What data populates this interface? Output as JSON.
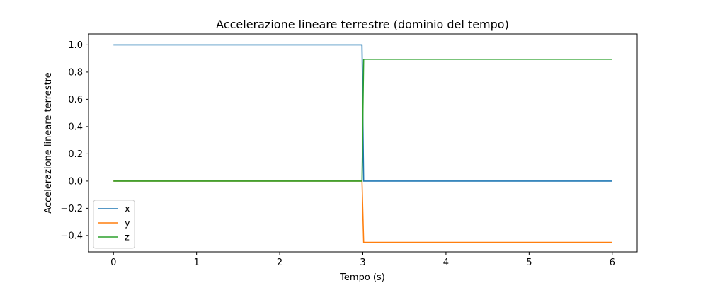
{
  "chart_data": {
    "type": "line",
    "title": "Accelerazione lineare terrestre (dominio del tempo)",
    "xlabel": "Tempo (s)",
    "ylabel": "Accelerazione lineare terrestre",
    "xlim": [
      -0.3,
      6.3
    ],
    "ylim": [
      -0.52,
      1.08
    ],
    "xticks": [
      0,
      1,
      2,
      3,
      4,
      5,
      6
    ],
    "xtick_labels": [
      "0",
      "1",
      "2",
      "3",
      "4",
      "5",
      "6"
    ],
    "yticks": [
      -0.4,
      -0.2,
      0.0,
      0.2,
      0.4,
      0.6,
      0.8,
      1.0
    ],
    "ytick_labels": [
      "−0.4",
      "−0.2",
      "0.0",
      "0.2",
      "0.4",
      "0.6",
      "0.8",
      "1.0"
    ],
    "grid": false,
    "legend_position": "lower-left",
    "series": [
      {
        "name": "x",
        "color": "#1f77b4",
        "x": [
          0,
          2.99,
          3.01,
          6
        ],
        "y": [
          1.0,
          1.0,
          0.0,
          0.0
        ]
      },
      {
        "name": "y",
        "color": "#ff7f0e",
        "x": [
          0,
          2.99,
          3.01,
          6
        ],
        "y": [
          0.0,
          0.0,
          -0.45,
          -0.45
        ]
      },
      {
        "name": "z",
        "color": "#2ca02c",
        "x": [
          0,
          2.99,
          3.01,
          6
        ],
        "y": [
          0.0,
          0.0,
          0.894,
          0.894
        ]
      }
    ]
  }
}
